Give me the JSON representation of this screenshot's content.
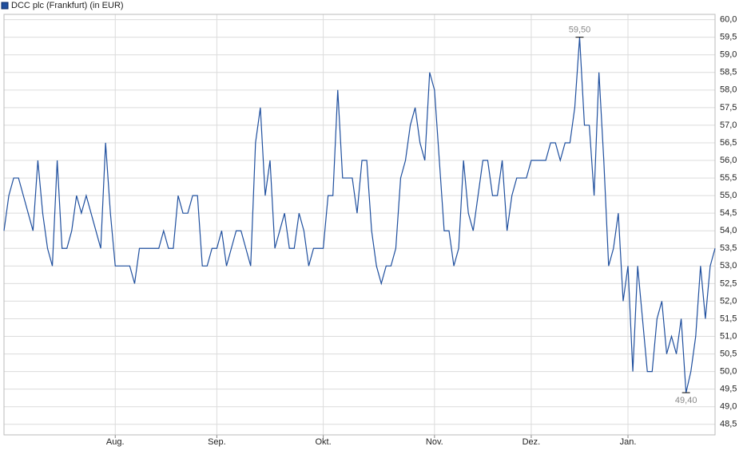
{
  "chart_data": {
    "type": "line",
    "series": [
      {
        "name": "DCC plc (Frankfurt) (in EUR)",
        "color": "#1f4f9e",
        "values": [
          54,
          55,
          55.5,
          55.5,
          55,
          54.5,
          54,
          56,
          54.5,
          53.5,
          53,
          56,
          53.5,
          53.5,
          54,
          55,
          54.5,
          55,
          54.5,
          54,
          53.5,
          56.5,
          54.5,
          53,
          53,
          53,
          53,
          52.5,
          53.5,
          53.5,
          53.5,
          53.5,
          53.5,
          54,
          53.5,
          53.5,
          55,
          54.5,
          54.5,
          55,
          55,
          53,
          53,
          53.5,
          53.5,
          54,
          53,
          53.5,
          54,
          54,
          53.5,
          53,
          56.5,
          57.5,
          55,
          56,
          53.5,
          54,
          54.5,
          53.5,
          53.5,
          54.5,
          54,
          53,
          53.5,
          53.5,
          53.5,
          55,
          55,
          58,
          55.5,
          55.5,
          55.5,
          54.5,
          56,
          56,
          54,
          53,
          52.5,
          53,
          53,
          53.5,
          55.5,
          56,
          57,
          57.5,
          56.5,
          56,
          58.5,
          58,
          56,
          54,
          54,
          53,
          53.5,
          56,
          54.5,
          54,
          55,
          56,
          56,
          55,
          55,
          56,
          54,
          55,
          55.5,
          55.5,
          55.5,
          56,
          56,
          56,
          56,
          56.5,
          56.5,
          56,
          56.5,
          56.5,
          57.5,
          59.5,
          57,
          57,
          55,
          58.5,
          56,
          53,
          53.5,
          54.5,
          52,
          53,
          50,
          53,
          51.5,
          50,
          50,
          51.5,
          52,
          50.5,
          51,
          50.5,
          51.5,
          49.4,
          50,
          51,
          53,
          51.5,
          53,
          53.5
        ]
      }
    ],
    "xlim": [
      0,
      147
    ],
    "xticks": [
      {
        "value": 23,
        "label": "Aug."
      },
      {
        "value": 44,
        "label": "Sep."
      },
      {
        "value": 66,
        "label": "Okt."
      },
      {
        "value": 89,
        "label": "Nov."
      },
      {
        "value": 109,
        "label": "Dez."
      },
      {
        "value": 129,
        "label": "Jan."
      }
    ],
    "ylim": [
      48.2,
      60.15
    ],
    "yticks": [
      {
        "value": 48.5,
        "label": "48,5"
      },
      {
        "value": 49,
        "label": "49,0"
      },
      {
        "value": 49.5,
        "label": "49,5"
      },
      {
        "value": 50,
        "label": "50,0"
      },
      {
        "value": 50.5,
        "label": "50,5"
      },
      {
        "value": 51,
        "label": "51,0"
      },
      {
        "value": 51.5,
        "label": "51,5"
      },
      {
        "value": 52,
        "label": "52,0"
      },
      {
        "value": 52.5,
        "label": "52,5"
      },
      {
        "value": 53,
        "label": "53,0"
      },
      {
        "value": 53.5,
        "label": "53,5"
      },
      {
        "value": 54,
        "label": "54,0"
      },
      {
        "value": 54.5,
        "label": "54,5"
      },
      {
        "value": 55,
        "label": "55,0"
      },
      {
        "value": 55.5,
        "label": "55,5"
      },
      {
        "value": 56,
        "label": "56,0"
      },
      {
        "value": 56.5,
        "label": "56,5"
      },
      {
        "value": 57,
        "label": "57,0"
      },
      {
        "value": 57.5,
        "label": "57,5"
      },
      {
        "value": 58,
        "label": "58,0"
      },
      {
        "value": 58.5,
        "label": "58,5"
      },
      {
        "value": 59,
        "label": "59,0"
      },
      {
        "value": 59.5,
        "label": "59,5"
      },
      {
        "value": 60,
        "label": "60,0"
      }
    ],
    "grid": true,
    "annotations": [
      {
        "x": 119,
        "y": 59.5,
        "label": "59,50",
        "position": "above"
      },
      {
        "x": 141,
        "y": 49.4,
        "label": "49,40",
        "position": "below"
      }
    ]
  }
}
